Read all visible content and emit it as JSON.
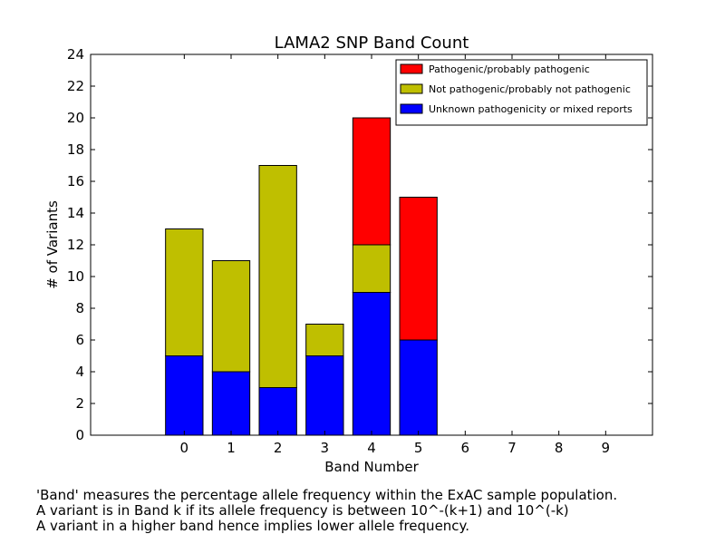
{
  "chart_data": {
    "type": "bar",
    "stacked": true,
    "title": "LAMA2 SNP Band Count",
    "xlabel": "Band Number",
    "ylabel": "# of Variants",
    "categories": [
      "0",
      "1",
      "2",
      "3",
      "4",
      "5",
      "6",
      "7",
      "8",
      "9"
    ],
    "ylim": [
      0,
      24
    ],
    "yticks": [
      0,
      2,
      4,
      6,
      8,
      10,
      12,
      14,
      16,
      18,
      20,
      22,
      24
    ],
    "grid": false,
    "legend_position": "top-right",
    "series": [
      {
        "name": "Unknown pathogenicity or mixed reports",
        "color": "#0000ff",
        "values": [
          5,
          4,
          3,
          5,
          9,
          6,
          0,
          0,
          0,
          0
        ]
      },
      {
        "name": "Not pathogenic/probably not pathogenic",
        "color": "#bfbf00",
        "values": [
          8,
          7,
          14,
          2,
          3,
          0,
          0,
          0,
          0,
          0
        ]
      },
      {
        "name": "Pathogenic/probably pathogenic",
        "color": "#ff0000",
        "values": [
          0,
          0,
          0,
          0,
          8,
          9,
          0,
          0,
          0,
          0
        ]
      }
    ],
    "legend_order": [
      2,
      1,
      0
    ]
  },
  "caption": [
    "'Band' measures the percentage allele frequency within the ExAC sample population.",
    "A variant is in Band k if its allele frequency is between 10^-(k+1) and 10^(-k)",
    "A variant in a higher band hence implies lower allele frequency."
  ]
}
